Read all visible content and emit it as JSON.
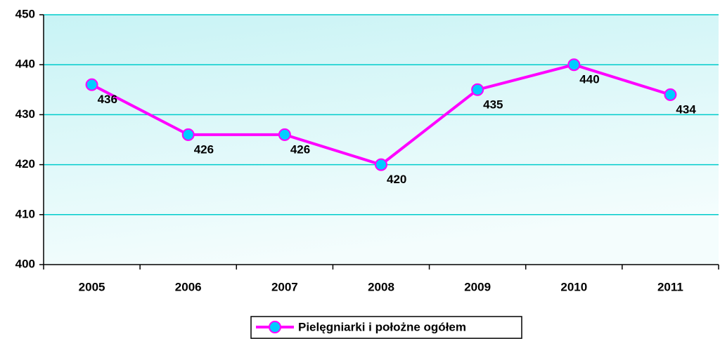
{
  "chart_data": {
    "type": "line",
    "categories": [
      "2005",
      "2006",
      "2007",
      "2008",
      "2009",
      "2010",
      "2011"
    ],
    "series": [
      {
        "name": "Pielęgniarki i położne ogółem",
        "color": "#ff00ff",
        "marker_color": "#00ccff",
        "values": [
          436,
          426,
          426,
          420,
          435,
          440,
          434
        ]
      }
    ],
    "ylim": [
      400,
      450
    ],
    "yticks": [
      400,
      410,
      420,
      430,
      440,
      450
    ],
    "grid": true,
    "legend": "bottom"
  }
}
